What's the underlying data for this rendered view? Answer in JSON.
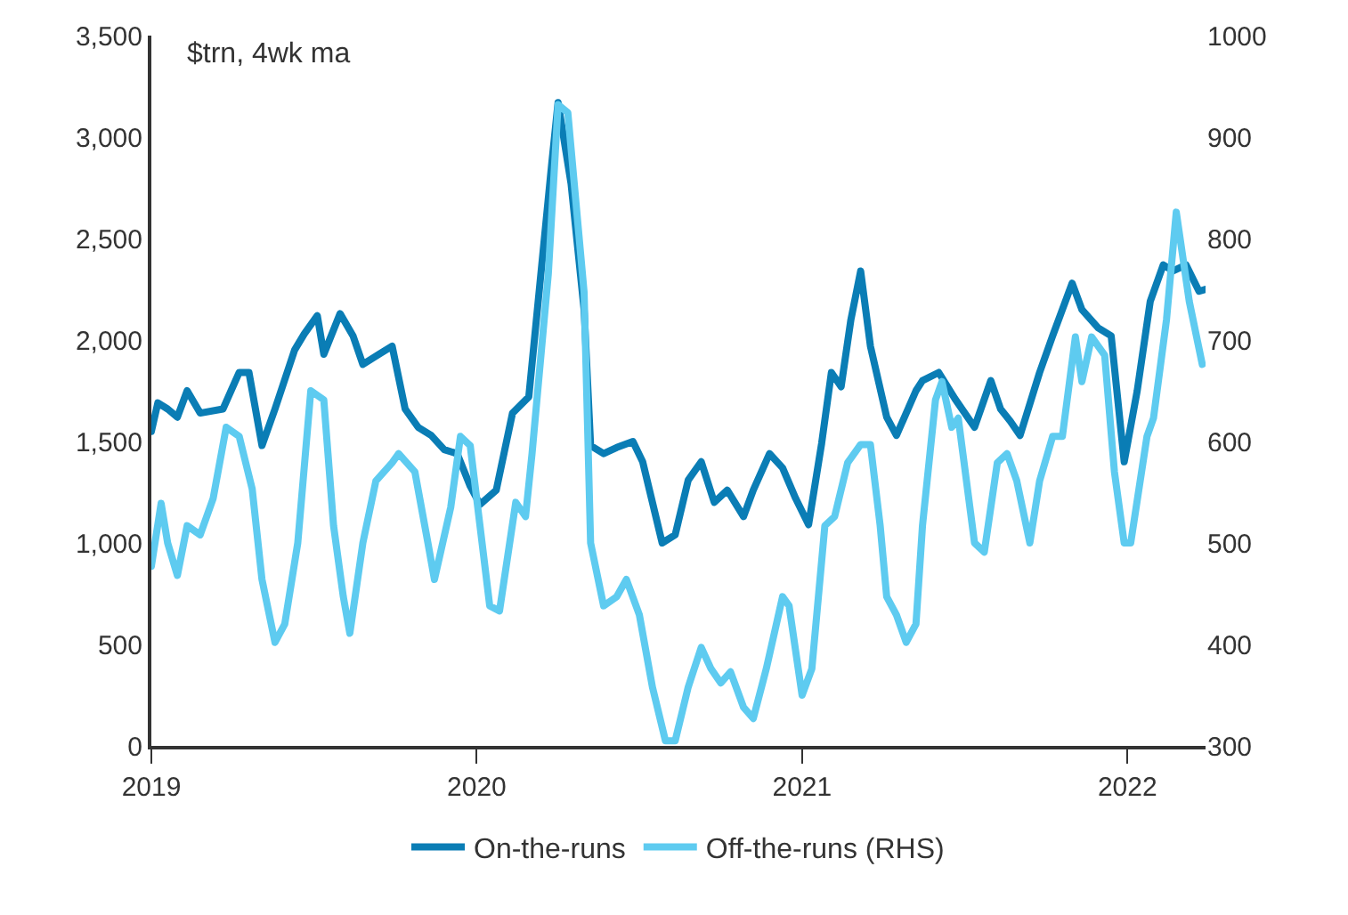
{
  "chart_data": {
    "type": "line",
    "annotations": [
      "$trn, 4wk ma"
    ],
    "xlim": [
      2019,
      2022.24
    ],
    "xticks": [
      2019,
      2020,
      2021,
      2022
    ],
    "ylim": [
      0,
      3500
    ],
    "yticks": [
      0,
      {
        "value": 500,
        "label": "500"
      },
      {
        "value": 1000,
        "label": "1,000"
      },
      {
        "value": 1500,
        "label": "1,500"
      },
      {
        "value": 2000,
        "label": "2,000"
      },
      {
        "value": 2500,
        "label": "2,500"
      },
      {
        "value": 3000,
        "label": "3,000"
      },
      {
        "value": 3500,
        "label": "3,500"
      }
    ],
    "y2lim": [
      300,
      1000
    ],
    "y2ticks": [
      300,
      400,
      500,
      600,
      700,
      800,
      900,
      1000
    ],
    "legend": "bottom",
    "marker": "none",
    "line_style": "solid",
    "series": [
      {
        "name": "On-the-runs",
        "color": "#0a7db5",
        "x": [
          2019.0,
          2019.02,
          2019.05,
          2019.08,
          2019.11,
          2019.15,
          2019.22,
          2019.27,
          2019.3,
          2019.34,
          2019.38,
          2019.44,
          2019.47,
          2019.51,
          2019.53,
          2019.58,
          2019.62,
          2019.65,
          2019.7,
          2019.74,
          2019.78,
          2019.82,
          2019.86,
          2019.9,
          2019.94,
          2019.98,
          2020.01,
          2020.06,
          2020.11,
          2020.16,
          2020.23,
          2020.25,
          2020.29,
          2020.33,
          2020.35,
          2020.39,
          2020.43,
          2020.48,
          2020.51,
          2020.57,
          2020.61,
          2020.65,
          2020.69,
          2020.73,
          2020.77,
          2020.82,
          2020.85,
          2020.9,
          2020.94,
          2020.98,
          2021.02,
          2021.06,
          2021.09,
          2021.12,
          2021.15,
          2021.18,
          2021.21,
          2021.26,
          2021.29,
          2021.35,
          2021.37,
          2021.42,
          2021.47,
          2021.53,
          2021.58,
          2021.61,
          2021.64,
          2021.67,
          2021.73,
          2021.77,
          2021.83,
          2021.86,
          2021.91,
          2021.95,
          2021.99,
          2022.03,
          2022.07,
          2022.11,
          2022.14,
          2022.18,
          2022.22,
          2022.24
        ],
        "values": [
          1550,
          1690,
          1660,
          1620,
          1750,
          1640,
          1660,
          1840,
          1840,
          1480,
          1660,
          1950,
          2030,
          2120,
          1930,
          2130,
          2020,
          1880,
          1930,
          1970,
          1660,
          1570,
          1530,
          1460,
          1440,
          1280,
          1190,
          1260,
          1640,
          1720,
          2860,
          3170,
          2770,
          2150,
          1480,
          1440,
          1470,
          1500,
          1400,
          1000,
          1040,
          1310,
          1400,
          1200,
          1260,
          1130,
          1260,
          1440,
          1370,
          1220,
          1090,
          1490,
          1840,
          1770,
          2100,
          2340,
          1970,
          1620,
          1530,
          1750,
          1800,
          1840,
          1710,
          1570,
          1800,
          1660,
          1600,
          1530,
          1840,
          2020,
          2280,
          2150,
          2060,
          2020,
          1400,
          1750,
          2190,
          2370,
          2340,
          2370,
          2240,
          2250
        ]
      },
      {
        "name": "Off-the-runs (RHS)",
        "color": "#5ecbf0",
        "axis": "y2",
        "x": [
          2019.0,
          2019.03,
          2019.05,
          2019.08,
          2019.11,
          2019.15,
          2019.19,
          2019.23,
          2019.27,
          2019.31,
          2019.34,
          2019.38,
          2019.41,
          2019.45,
          2019.49,
          2019.53,
          2019.56,
          2019.59,
          2019.61,
          2019.65,
          2019.69,
          2019.74,
          2019.76,
          2019.81,
          2019.85,
          2019.87,
          2019.92,
          2019.95,
          2019.98,
          2020.01,
          2020.04,
          2020.07,
          2020.12,
          2020.15,
          2020.17,
          2020.22,
          2020.25,
          2020.28,
          2020.33,
          2020.35,
          2020.39,
          2020.43,
          2020.46,
          2020.5,
          2020.54,
          2020.58,
          2020.61,
          2020.65,
          2020.69,
          2020.72,
          2020.75,
          2020.78,
          2020.82,
          2020.85,
          2020.89,
          2020.94,
          2020.96,
          2021.0,
          2021.03,
          2021.07,
          2021.1,
          2021.14,
          2021.18,
          2021.21,
          2021.24,
          2021.26,
          2021.29,
          2021.32,
          2021.35,
          2021.37,
          2021.41,
          2021.43,
          2021.46,
          2021.48,
          2021.53,
          2021.56,
          2021.6,
          2021.63,
          2021.66,
          2021.7,
          2021.73,
          2021.77,
          2021.8,
          2021.84,
          2021.86,
          2021.89,
          2021.93,
          2021.96,
          2021.99,
          2022.01,
          2022.06,
          2022.08,
          2022.12,
          2022.15,
          2022.19,
          2022.23
        ],
        "values": [
          477,
          539,
          500,
          468,
          517,
          508,
          544,
          614,
          605,
          553,
          464,
          402,
          420,
          500,
          650,
          641,
          517,
          447,
          411,
          500,
          561,
          579,
          588,
          570,
          500,
          464,
          535,
          605,
          596,
          517,
          438,
          433,
          540,
          526,
          588,
          765,
          932,
          924,
          747,
          500,
          438,
          447,
          464,
          429,
          358,
          305,
          305,
          358,
          397,
          376,
          362,
          373,
          338,
          327,
          376,
          447,
          438,
          350,
          376,
          517,
          526,
          579,
          597,
          597,
          517,
          447,
          429,
          402,
          420,
          517,
          641,
          659,
          614,
          623,
          500,
          491,
          579,
          588,
          561,
          500,
          561,
          605,
          605,
          703,
          659,
          703,
          685,
          570,
          500,
          500,
          605,
          623,
          720,
          826,
          738,
          676
        ]
      }
    ]
  }
}
